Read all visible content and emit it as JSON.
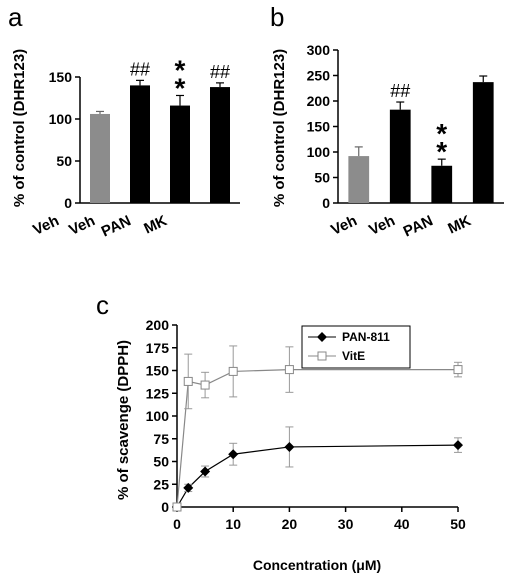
{
  "chart_data": [
    {
      "panel_label": "a",
      "type": "bar",
      "categories": [
        "Veh",
        "Veh",
        "PAN",
        "MK"
      ],
      "values": [
        106,
        140,
        116,
        138
      ],
      "errors": [
        3,
        6,
        12,
        5
      ],
      "bar_colors": [
        "#8c8c8c",
        "#000000",
        "#000000",
        "#000000"
      ],
      "annotations": [
        "",
        "##",
        "**",
        "##"
      ],
      "ylabel": "% of control (DHR123)",
      "ylim": [
        0,
        150
      ],
      "yticks": [
        0,
        50,
        100,
        150
      ],
      "grid": false
    },
    {
      "panel_label": "b",
      "type": "bar",
      "categories": [
        "Veh",
        "Veh",
        "PAN",
        "MK"
      ],
      "values": [
        92,
        183,
        73,
        237
      ],
      "errors": [
        18,
        15,
        13,
        12
      ],
      "bar_colors": [
        "#8c8c8c",
        "#000000",
        "#000000",
        "#000000"
      ],
      "annotations": [
        "",
        "##",
        "**",
        ""
      ],
      "ylabel": "% of control (DHR123)",
      "ylim": [
        0,
        300
      ],
      "yticks": [
        0,
        50,
        100,
        150,
        200,
        250,
        300
      ],
      "grid": false
    },
    {
      "panel_label": "c",
      "type": "line",
      "xlabel": "Concentration  (μM)",
      "ylabel": "% of scavenge (DPPH)",
      "xlim": [
        0,
        50
      ],
      "ylim": [
        0,
        200
      ],
      "xticks": [
        0,
        10,
        20,
        30,
        40,
        50
      ],
      "yticks": [
        0,
        25,
        50,
        75,
        100,
        125,
        150,
        175,
        200
      ],
      "legend_position": "top-right",
      "grid": false,
      "series": [
        {
          "name": "PAN-811",
          "marker": "diamond",
          "color": "#000000",
          "x": [
            0,
            2,
            5,
            10,
            20,
            50
          ],
          "y": [
            0,
            21,
            39,
            58,
            66,
            68
          ],
          "errors": [
            0,
            4,
            6,
            12,
            22,
            8
          ]
        },
        {
          "name": "VitE",
          "marker": "open-square",
          "color": "#000000",
          "x": [
            0,
            2,
            5,
            10,
            20,
            50
          ],
          "y": [
            0,
            138,
            134,
            149,
            151,
            151
          ],
          "errors": [
            0,
            30,
            14,
            28,
            25,
            8
          ]
        }
      ]
    }
  ]
}
